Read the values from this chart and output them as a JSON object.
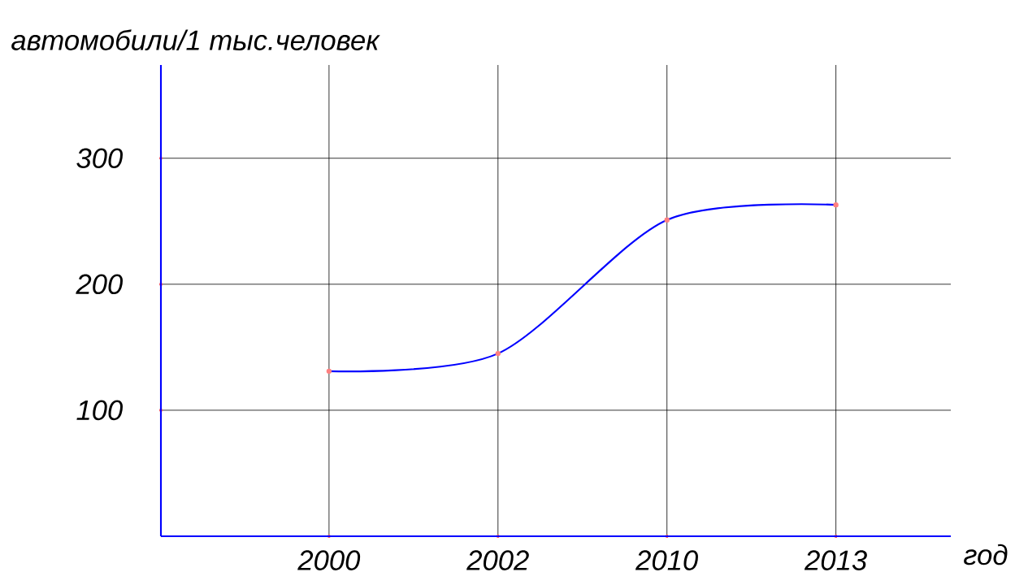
{
  "chart_data": {
    "type": "line",
    "xlabel": "год",
    "ylabel": "автомобили/1 тыс.человек",
    "categories": [
      "2000",
      "2002",
      "2010",
      "2013"
    ],
    "series": [
      {
        "color": "#0000ff",
        "values": [
          131,
          145,
          251,
          263
        ]
      }
    ],
    "ylim": [
      0,
      374
    ],
    "yticks": [
      100,
      200,
      300
    ],
    "grid": true,
    "marker": "circle",
    "line_style": "solid"
  }
}
